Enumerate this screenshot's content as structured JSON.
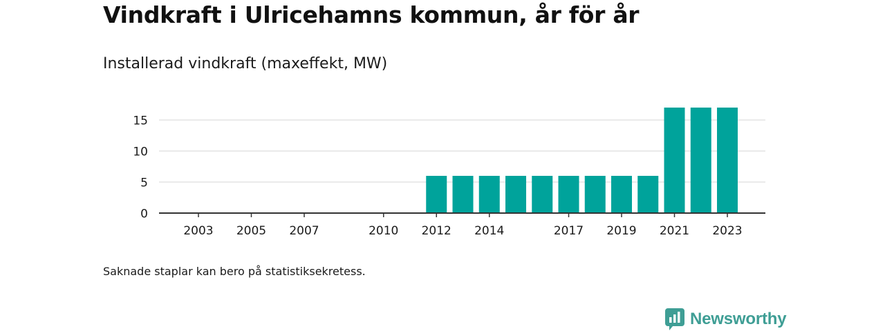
{
  "header": {
    "title": "Vindkraft i Ulricehamns kommun, år för år",
    "subtitle": "Installerad vindkraft (maxeffekt, MW)"
  },
  "footnote": "Saknade staplar kan bero på statistiksekretess.",
  "brand": {
    "name": "Newsworthy",
    "icon": "newsworthy-logo-icon",
    "color": "#3f9e95"
  },
  "chart_data": {
    "type": "bar",
    "title": "",
    "xlabel": "",
    "ylabel": "",
    "categories": [
      "2003",
      "2004",
      "2005",
      "2006",
      "2007",
      "2008",
      "2009",
      "2010",
      "2011",
      "2012",
      "2013",
      "2014",
      "2015",
      "2016",
      "2017",
      "2018",
      "2019",
      "2020",
      "2021",
      "2022",
      "2023"
    ],
    "series": [
      {
        "values": [
          0,
          0,
          0,
          0,
          0,
          0,
          0,
          0,
          0,
          6,
          6,
          6,
          6,
          6,
          6,
          6,
          6,
          6,
          17,
          17,
          17
        ]
      }
    ],
    "x_tick_labels": [
      "2003",
      "2005",
      "2007",
      "2010",
      "2012",
      "2014",
      "2017",
      "2019",
      "2021",
      "2023"
    ],
    "y_ticks": [
      0,
      5,
      10,
      15
    ],
    "ylim": [
      0,
      17
    ],
    "grid": true,
    "bar_color": "#00a39b"
  }
}
